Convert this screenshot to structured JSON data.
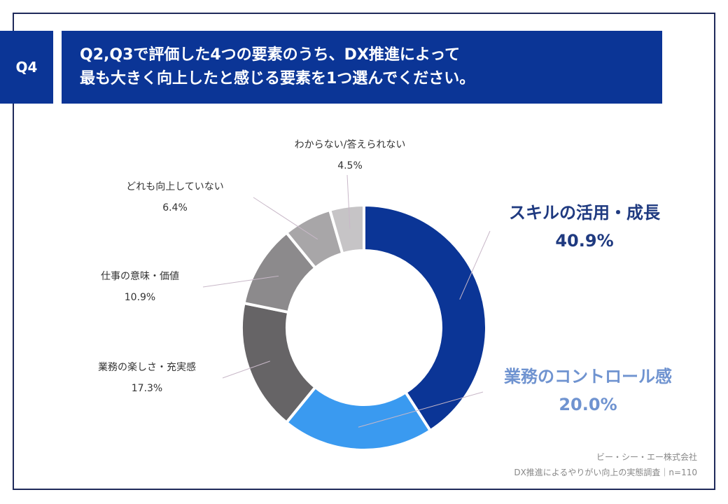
{
  "question": {
    "badge": "Q4",
    "line1": "Q2,Q3で評価した4つの要素のうち、DX推進によって",
    "line2": "最も大きく向上したと感じる要素を1つ選んでください。"
  },
  "chart_data": {
    "type": "pie",
    "donut": true,
    "categories": [
      "スキルの活用・成長",
      "業務のコントロール感",
      "業務の楽しさ・充実感",
      "仕事の意味・価値",
      "どれも向上していない",
      "わからない/答えられない"
    ],
    "values": [
      40.9,
      20.0,
      17.3,
      10.9,
      6.4,
      4.5
    ],
    "value_labels": [
      "40.9%",
      "20.0%",
      "17.3%",
      "10.9%",
      "6.4%",
      "4.5%"
    ],
    "colors": [
      "#0b3596",
      "#3a9af0",
      "#666466",
      "#8c8a8c",
      "#a8a6a8",
      "#c6c4c6"
    ],
    "label_colors": [
      "#1f3a80",
      "#6f93d0",
      "#333333",
      "#333333",
      "#333333",
      "#333333"
    ]
  },
  "source": {
    "line1": "ビー・シー・エー株式会社",
    "line2": "DX推進によるやりがい向上の実態調査｜n=110"
  }
}
